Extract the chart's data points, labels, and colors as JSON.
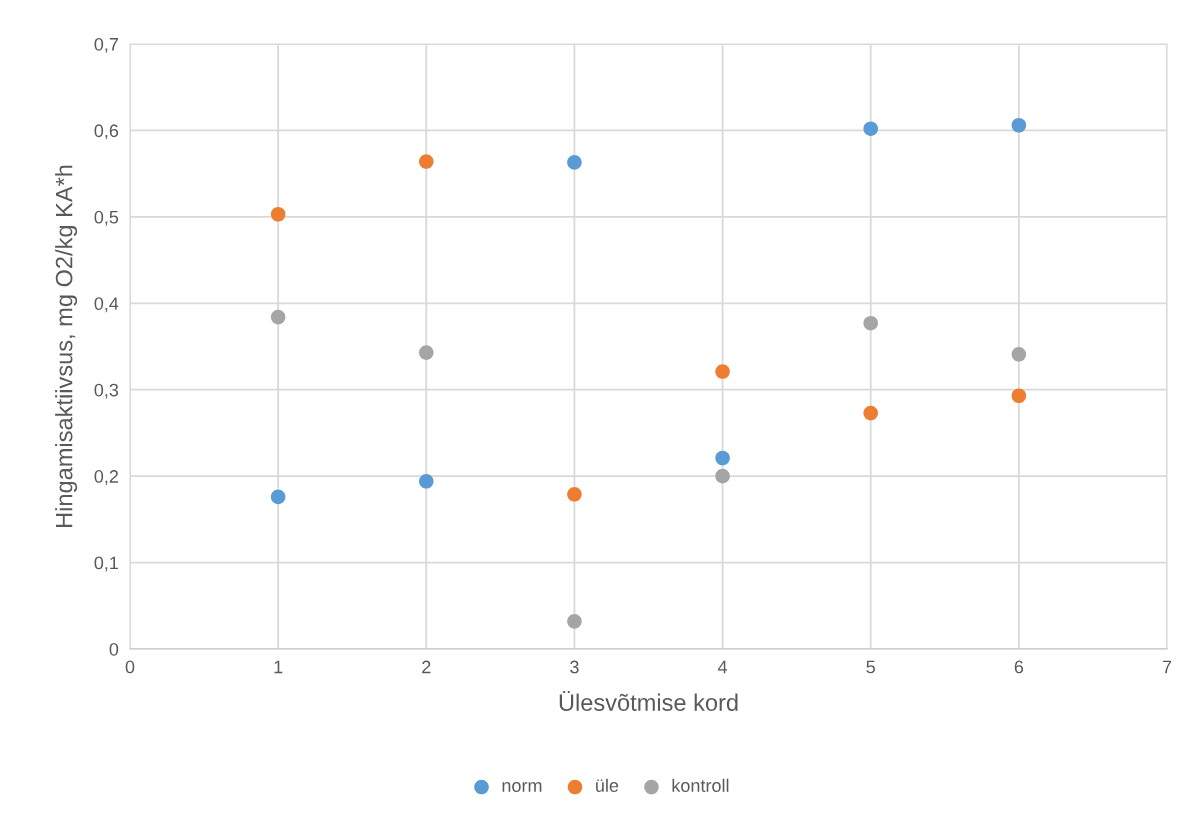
{
  "chart_data": {
    "type": "scatter",
    "xlabel": "Ülesvõtmise kord",
    "ylabel": "Hingamisaktiivsus, mg O2/kg KA*h",
    "x": [
      1,
      2,
      3,
      4,
      5,
      6
    ],
    "series": [
      {
        "name": "norm",
        "color": "#5b9bd5",
        "values": [
          0.176,
          0.194,
          0.563,
          0.221,
          0.602,
          0.606
        ]
      },
      {
        "name": "üle",
        "color": "#ed7d31",
        "values": [
          0.503,
          0.564,
          0.179,
          0.321,
          0.273,
          0.293
        ]
      },
      {
        "name": "kontroll",
        "color": "#a5a5a5",
        "values": [
          0.384,
          0.343,
          0.032,
          0.2,
          0.377,
          0.341
        ]
      }
    ],
    "xlim": [
      0,
      7
    ],
    "xticks": [
      0,
      1,
      2,
      3,
      4,
      5,
      6,
      7
    ],
    "ylim": [
      0,
      0.7
    ],
    "yticks": [
      {
        "value": 0,
        "label": "0"
      },
      {
        "value": 0.1,
        "label": "0,1"
      },
      {
        "value": 0.2,
        "label": "0,2"
      },
      {
        "value": 0.3,
        "label": "0,3"
      },
      {
        "value": 0.4,
        "label": "0,4"
      },
      {
        "value": 0.5,
        "label": "0,5"
      },
      {
        "value": 0.6,
        "label": "0,6"
      },
      {
        "value": 0.7,
        "label": "0,7"
      }
    ],
    "grid": true,
    "legend": "bottom",
    "marker": "circle"
  }
}
